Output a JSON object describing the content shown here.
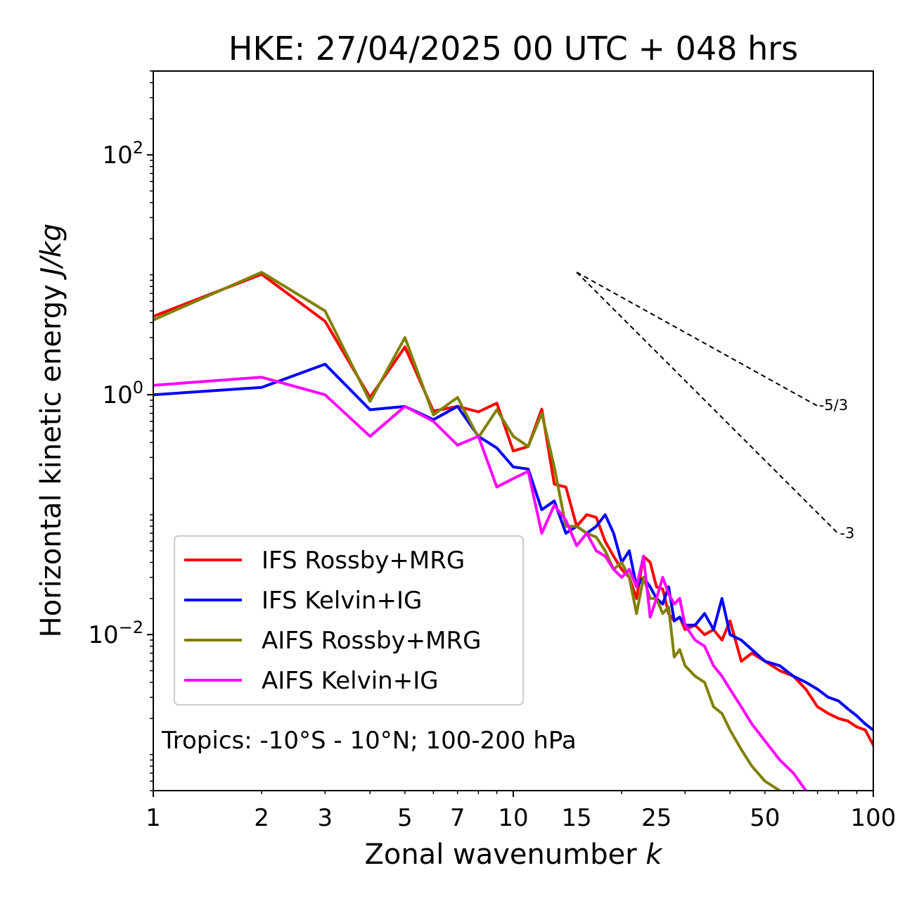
{
  "chart_data": {
    "type": "line",
    "title": "HKE: 27/04/2025 00 UTC + 048 hrs",
    "xlabel": "Zonal wavenumber",
    "xlabel_var": "k",
    "ylabel": "Horizontal kinetic energy",
    "ylabel_unit": "J/kg",
    "xscale": "log",
    "yscale": "log",
    "xlim": [
      1,
      100
    ],
    "ylim": [
      0.0005,
      500
    ],
    "xticks": [
      1,
      2,
      3,
      5,
      7,
      10,
      15,
      25,
      50,
      100
    ],
    "xtick_labels": [
      "1",
      "2",
      "3",
      "5",
      "7",
      "10",
      "15",
      "25",
      "50",
      "100"
    ],
    "yticks": [
      0.01,
      1,
      100
    ],
    "ytick_labels": [
      {
        "base": "10",
        "exp": "−2"
      },
      {
        "base": "10",
        "exp": "0"
      },
      {
        "base": "10",
        "exp": "2"
      }
    ],
    "grid": false,
    "legend_position": "lower-left",
    "annotation": "Tropics: -10°S - 10°N; 100-200 hPa",
    "reference_lines": [
      {
        "label": "-5/3",
        "slope": -1.6667,
        "x_start": 15,
        "y_start": 10.5,
        "x_end": 70
      },
      {
        "label": "-3",
        "slope": -3,
        "x_start": 15,
        "y_start": 10.5,
        "x_end": 80
      }
    ],
    "series": [
      {
        "name": "IFS Rossby+MRG",
        "color": "#ff0000",
        "x": [
          1,
          2,
          3,
          4,
          5,
          6,
          7,
          8,
          9,
          10,
          11,
          12,
          13,
          14,
          15,
          16,
          17,
          18,
          19,
          20,
          21,
          22,
          23,
          24,
          25,
          26,
          27,
          28,
          29,
          30,
          32,
          34,
          36,
          38,
          40,
          43,
          46,
          50,
          55,
          60,
          65,
          70,
          75,
          80,
          85,
          90,
          95,
          100
        ],
        "y": [
          4.5,
          10.1,
          4.1,
          0.95,
          2.5,
          0.73,
          0.8,
          0.72,
          0.85,
          0.34,
          0.37,
          0.76,
          0.18,
          0.17,
          0.08,
          0.1,
          0.095,
          0.06,
          0.045,
          0.035,
          0.03,
          0.02,
          0.045,
          0.04,
          0.025,
          0.024,
          0.015,
          0.013,
          0.014,
          0.011,
          0.012,
          0.01,
          0.011,
          0.009,
          0.013,
          0.006,
          0.007,
          0.006,
          0.005,
          0.0045,
          0.0035,
          0.0025,
          0.0022,
          0.002,
          0.0019,
          0.0017,
          0.0016,
          0.0012
        ]
      },
      {
        "name": "IFS Kelvin+IG",
        "color": "#0000ff",
        "x": [
          1,
          2,
          3,
          4,
          5,
          6,
          7,
          8,
          9,
          10,
          11,
          12,
          13,
          14,
          15,
          16,
          17,
          18,
          19,
          20,
          21,
          22,
          23,
          24,
          25,
          26,
          27,
          28,
          29,
          30,
          32,
          34,
          36,
          38,
          40,
          43,
          46,
          50,
          55,
          60,
          65,
          70,
          75,
          80,
          85,
          90,
          95,
          100
        ],
        "y": [
          1.0,
          1.15,
          1.8,
          0.75,
          0.8,
          0.62,
          0.8,
          0.45,
          0.36,
          0.25,
          0.24,
          0.11,
          0.13,
          0.07,
          0.08,
          0.07,
          0.08,
          0.1,
          0.07,
          0.04,
          0.05,
          0.025,
          0.03,
          0.025,
          0.02,
          0.018,
          0.025,
          0.013,
          0.014,
          0.012,
          0.012,
          0.015,
          0.011,
          0.02,
          0.01,
          0.009,
          0.0075,
          0.006,
          0.0055,
          0.0045,
          0.004,
          0.0035,
          0.003,
          0.0028,
          0.0024,
          0.0021,
          0.0018,
          0.0016
        ]
      },
      {
        "name": "AIFS Rossby+MRG",
        "color": "#808000",
        "x": [
          1,
          2,
          3,
          4,
          5,
          6,
          7,
          8,
          9,
          10,
          11,
          12,
          13,
          14,
          15,
          16,
          17,
          18,
          19,
          20,
          21,
          22,
          23,
          24,
          25,
          26,
          27,
          28,
          29,
          30,
          32,
          34,
          36,
          38,
          40,
          43,
          46,
          50,
          55,
          60,
          65,
          70
        ],
        "y": [
          4.2,
          10.5,
          5.0,
          0.88,
          3.0,
          0.68,
          0.95,
          0.44,
          0.75,
          0.45,
          0.37,
          0.7,
          0.25,
          0.08,
          0.08,
          0.07,
          0.065,
          0.05,
          0.035,
          0.04,
          0.03,
          0.015,
          0.03,
          0.02,
          0.02,
          0.015,
          0.017,
          0.0065,
          0.0075,
          0.0055,
          0.0045,
          0.004,
          0.0025,
          0.0022,
          0.0016,
          0.0011,
          0.0008,
          0.0006,
          0.0005,
          0.0004,
          0.00035,
          0.0003
        ]
      },
      {
        "name": "AIFS Kelvin+IG",
        "color": "#ff00ff",
        "x": [
          1,
          2,
          3,
          4,
          5,
          6,
          7,
          8,
          9,
          10,
          11,
          12,
          13,
          14,
          15,
          16,
          17,
          18,
          19,
          20,
          21,
          22,
          23,
          24,
          25,
          26,
          27,
          28,
          29,
          30,
          32,
          34,
          36,
          38,
          40,
          43,
          46,
          50,
          55,
          60,
          65,
          70
        ],
        "y": [
          1.2,
          1.4,
          1.0,
          0.45,
          0.8,
          0.6,
          0.38,
          0.45,
          0.17,
          0.2,
          0.23,
          0.07,
          0.12,
          0.09,
          0.055,
          0.07,
          0.05,
          0.045,
          0.035,
          0.03,
          0.035,
          0.025,
          0.045,
          0.014,
          0.02,
          0.03,
          0.022,
          0.018,
          0.02,
          0.012,
          0.009,
          0.008,
          0.0055,
          0.0045,
          0.0035,
          0.0025,
          0.0018,
          0.0013,
          0.0009,
          0.0007,
          0.0005,
          0.0004
        ]
      }
    ]
  }
}
